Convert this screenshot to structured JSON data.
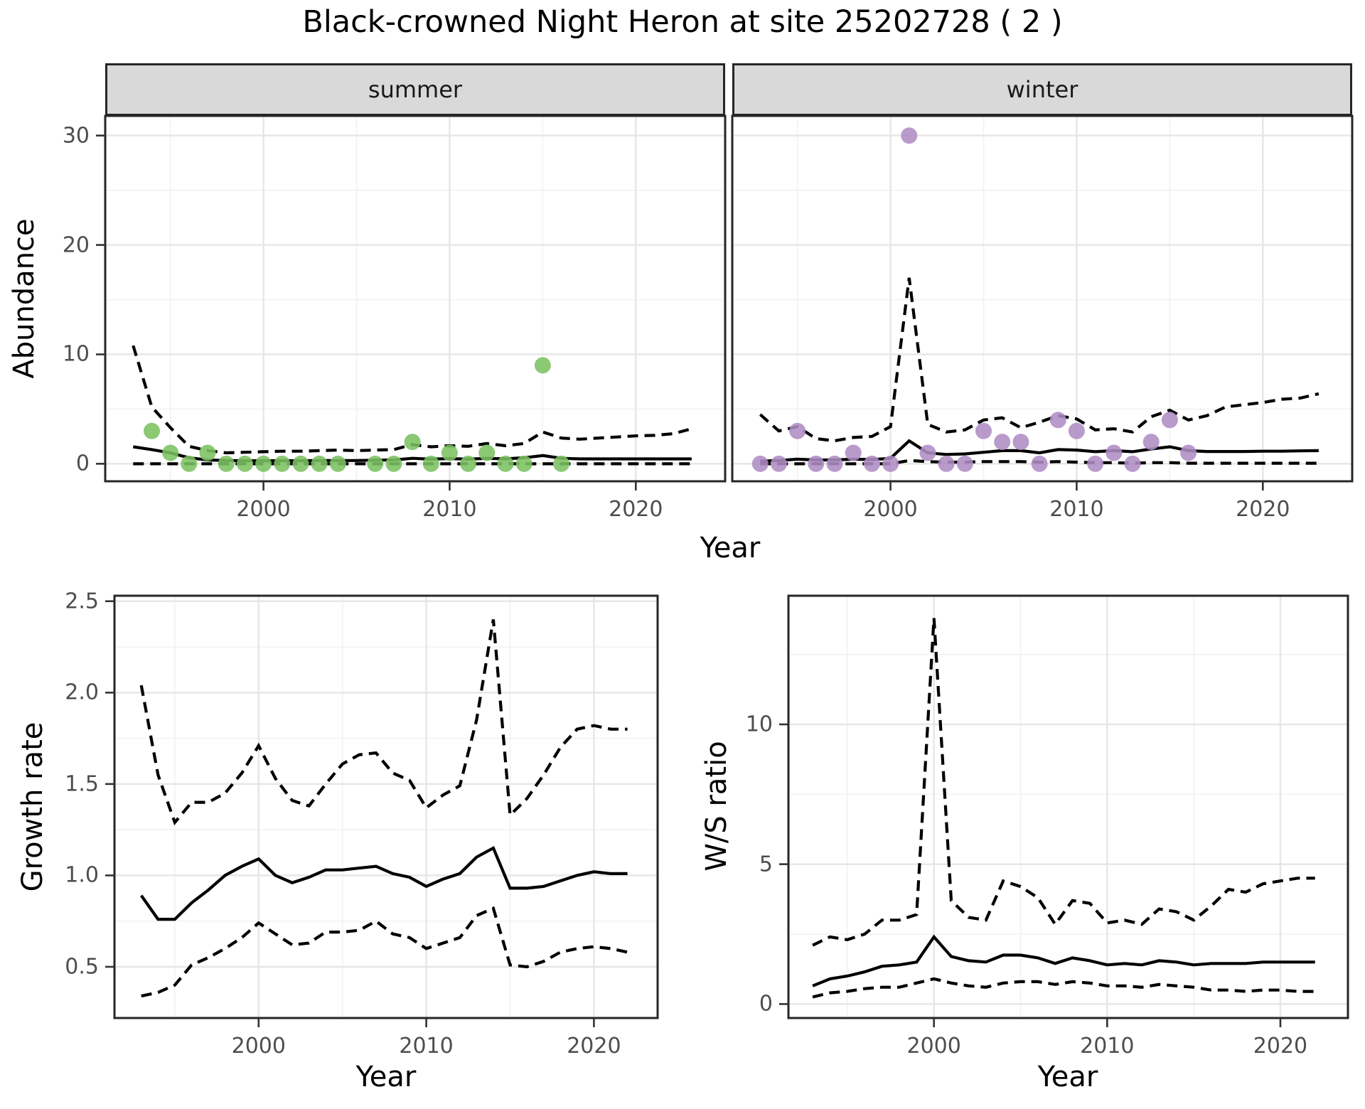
{
  "title": "Black-crowned Night Heron at site 25202728 ( 2 )",
  "labels": {
    "year": "Year",
    "abundance": "Abundance",
    "growth_rate": "Growth rate",
    "ws_ratio": "W/S ratio"
  },
  "colors": {
    "summer_point": "#7BC162",
    "winter_point": "#AE8CC4",
    "line": "#000000",
    "strip_bg": "#D9D9D9",
    "grid_major": "#E6E6E6",
    "grid_minor": "#F2F2F2",
    "panel_border": "#262626",
    "tick_mark": "#333333",
    "tick_text": "#4D4D4D"
  },
  "chart_data": [
    {
      "id": "abundance-summer",
      "type": "line",
      "facet_label": "summer",
      "xlabel": "Year",
      "ylabel": "Abundance",
      "xlim": [
        1991.5,
        2024.8
      ],
      "ylim": [
        -1.6,
        31.8
      ],
      "x_ticks": [
        2000,
        2010,
        2020
      ],
      "x_tick_labels": [
        "2000",
        "2010",
        "2020"
      ],
      "x_minor": [
        1995,
        2005,
        2015
      ],
      "y_ticks": [
        0,
        10,
        20,
        30
      ],
      "y_tick_labels": [
        "0",
        "10",
        "20",
        "30"
      ],
      "y_minor": [
        5,
        15,
        25
      ],
      "years": [
        1993,
        1994,
        1995,
        1996,
        1997,
        1998,
        1999,
        2000,
        2001,
        2002,
        2003,
        2004,
        2005,
        2006,
        2007,
        2008,
        2009,
        2010,
        2011,
        2012,
        2013,
        2014,
        2015,
        2016,
        2017,
        2018,
        2019,
        2020,
        2021,
        2022,
        2023
      ],
      "fit": [
        1.55,
        1.3,
        1.0,
        0.55,
        0.35,
        0.3,
        0.28,
        0.28,
        0.28,
        0.28,
        0.3,
        0.3,
        0.3,
        0.33,
        0.35,
        0.5,
        0.42,
        0.48,
        0.42,
        0.5,
        0.45,
        0.55,
        0.75,
        0.5,
        0.45,
        0.45,
        0.45,
        0.45,
        0.45,
        0.45,
        0.45
      ],
      "upper": [
        10.8,
        5.2,
        3.3,
        1.6,
        1.2,
        1.0,
        1.05,
        1.1,
        1.15,
        1.15,
        1.2,
        1.25,
        1.2,
        1.25,
        1.3,
        1.75,
        1.55,
        1.65,
        1.6,
        1.85,
        1.65,
        1.85,
        2.9,
        2.35,
        2.25,
        2.35,
        2.45,
        2.55,
        2.6,
        2.75,
        3.2
      ],
      "lower": [
        0,
        0,
        0,
        0,
        0,
        0,
        0,
        0,
        0,
        0,
        0,
        0,
        0,
        0,
        0,
        0,
        0,
        0,
        0,
        0,
        0,
        0,
        0,
        0,
        0,
        0,
        0,
        0,
        0,
        0,
        0
      ],
      "points": {
        "years": [
          1994,
          1995,
          1996,
          1997,
          1998,
          1999,
          2000,
          2001,
          2002,
          2003,
          2004,
          2006,
          2007,
          2008,
          2009,
          2010,
          2011,
          2012,
          2013,
          2014,
          2015,
          2016
        ],
        "values": [
          3,
          1,
          0,
          1,
          0,
          0,
          0,
          0,
          0,
          0,
          0,
          0,
          0,
          2,
          0,
          1,
          0,
          1,
          0,
          0,
          9,
          0
        ]
      },
      "point_color": "#7BC162"
    },
    {
      "id": "abundance-winter",
      "type": "line",
      "facet_label": "winter",
      "xlabel": "Year",
      "ylabel": "Abundance",
      "xlim": [
        1991.5,
        2024.8
      ],
      "ylim": [
        -1.6,
        31.8
      ],
      "x_ticks": [
        2000,
        2010,
        2020
      ],
      "x_tick_labels": [
        "2000",
        "2010",
        "2020"
      ],
      "x_minor": [
        1995,
        2005,
        2015
      ],
      "y_ticks": [
        0,
        10,
        20,
        30
      ],
      "y_tick_labels": [
        "",
        "",
        "",
        ""
      ],
      "y_minor": [
        5,
        15,
        25
      ],
      "years": [
        1993,
        1994,
        1995,
        1996,
        1997,
        1998,
        1999,
        2000,
        2001,
        2002,
        2003,
        2004,
        2005,
        2006,
        2007,
        2008,
        2009,
        2010,
        2011,
        2012,
        2013,
        2014,
        2015,
        2016,
        2017,
        2018,
        2019,
        2020,
        2021,
        2022,
        2023
      ],
      "fit": [
        0.25,
        0.3,
        0.42,
        0.35,
        0.35,
        0.42,
        0.38,
        0.5,
        2.1,
        1.0,
        0.85,
        0.9,
        1.05,
        1.2,
        1.2,
        1.0,
        1.3,
        1.25,
        1.1,
        1.2,
        1.1,
        1.35,
        1.55,
        1.2,
        1.12,
        1.12,
        1.12,
        1.15,
        1.15,
        1.18,
        1.2
      ],
      "upper": [
        4.5,
        3.0,
        3.4,
        2.3,
        2.1,
        2.4,
        2.5,
        3.4,
        17.0,
        3.6,
        2.9,
        3.1,
        4.0,
        4.2,
        3.3,
        3.8,
        4.4,
        4.1,
        3.1,
        3.2,
        2.9,
        4.3,
        4.9,
        4.0,
        4.4,
        5.2,
        5.4,
        5.6,
        5.9,
        6.0,
        6.4
      ],
      "lower": [
        0,
        0,
        0,
        0,
        0,
        0,
        0,
        0,
        0.3,
        0.2,
        0.15,
        0.15,
        0.2,
        0.2,
        0.2,
        0.15,
        0.2,
        0.15,
        0.1,
        0.1,
        0.05,
        0.1,
        0.1,
        0.05,
        0.05,
        0.05,
        0.05,
        0.05,
        0.05,
        0.05,
        0.05
      ],
      "points": {
        "years": [
          1993,
          1994,
          1995,
          1996,
          1997,
          1998,
          1999,
          2000,
          2001,
          2002,
          2003,
          2004,
          2005,
          2006,
          2007,
          2008,
          2009,
          2010,
          2011,
          2012,
          2013,
          2014,
          2015,
          2016
        ],
        "values": [
          0,
          0,
          3,
          0,
          0,
          1,
          0,
          0,
          30,
          1,
          0,
          0,
          3,
          2,
          2,
          0,
          4,
          3,
          0,
          1,
          0,
          2,
          4,
          1
        ]
      },
      "point_color": "#AE8CC4"
    },
    {
      "id": "growth-rate",
      "type": "line",
      "facet_label": "",
      "xlabel": "Year",
      "ylabel": "Growth rate",
      "xlim": [
        1991.4,
        2023.8
      ],
      "ylim": [
        0.22,
        2.53
      ],
      "x_ticks": [
        2000,
        2010,
        2020
      ],
      "x_tick_labels": [
        "2000",
        "2010",
        "2020"
      ],
      "x_minor": [
        1995,
        2005,
        2015
      ],
      "y_ticks": [
        0.5,
        1.0,
        1.5,
        2.0,
        2.5
      ],
      "y_tick_labels": [
        "0.5",
        "1.0",
        "1.5",
        "2.0",
        "2.5"
      ],
      "y_minor": [
        0.75,
        1.25,
        1.75,
        2.25
      ],
      "years": [
        1993,
        1994,
        1995,
        1996,
        1997,
        1998,
        1999,
        2000,
        2001,
        2002,
        2003,
        2004,
        2005,
        2006,
        2007,
        2008,
        2009,
        2010,
        2011,
        2012,
        2013,
        2014,
        2015,
        2016,
        2017,
        2018,
        2019,
        2020,
        2021,
        2022
      ],
      "fit": [
        0.89,
        0.76,
        0.76,
        0.85,
        0.92,
        1.0,
        1.05,
        1.09,
        1.0,
        0.96,
        0.99,
        1.03,
        1.03,
        1.04,
        1.05,
        1.01,
        0.99,
        0.94,
        0.98,
        1.01,
        1.1,
        1.15,
        0.93,
        0.93,
        0.94,
        0.97,
        1.0,
        1.02,
        1.01,
        1.01
      ],
      "upper": [
        2.04,
        1.55,
        1.29,
        1.4,
        1.4,
        1.45,
        1.56,
        1.71,
        1.53,
        1.41,
        1.38,
        1.5,
        1.61,
        1.66,
        1.67,
        1.56,
        1.52,
        1.37,
        1.44,
        1.49,
        1.85,
        2.4,
        1.33,
        1.42,
        1.55,
        1.7,
        1.8,
        1.82,
        1.8,
        1.8
      ],
      "lower": [
        0.34,
        0.36,
        0.4,
        0.51,
        0.55,
        0.6,
        0.66,
        0.74,
        0.68,
        0.62,
        0.63,
        0.69,
        0.69,
        0.7,
        0.75,
        0.68,
        0.66,
        0.6,
        0.63,
        0.66,
        0.78,
        0.82,
        0.51,
        0.5,
        0.53,
        0.58,
        0.6,
        0.61,
        0.6,
        0.58
      ],
      "points": null,
      "point_color": null
    },
    {
      "id": "ws-ratio",
      "type": "line",
      "facet_label": "",
      "xlabel": "Year",
      "ylabel": "W/S ratio",
      "xlim": [
        1991.6,
        2023.9
      ],
      "ylim": [
        -0.5,
        14.6
      ],
      "x_ticks": [
        2000,
        2010,
        2020
      ],
      "x_tick_labels": [
        "2000",
        "2010",
        "2020"
      ],
      "x_minor": [
        1995,
        2005,
        2015
      ],
      "y_ticks": [
        0,
        5,
        10
      ],
      "y_tick_labels": [
        "0",
        "5",
        "10"
      ],
      "y_minor": [
        2.5,
        7.5,
        12.5
      ],
      "years": [
        1993,
        1994,
        1995,
        1996,
        1997,
        1998,
        1999,
        2000,
        2001,
        2002,
        2003,
        2004,
        2005,
        2006,
        2007,
        2008,
        2009,
        2010,
        2011,
        2012,
        2013,
        2014,
        2015,
        2016,
        2017,
        2018,
        2019,
        2020,
        2021,
        2022
      ],
      "fit": [
        0.65,
        0.9,
        1.0,
        1.15,
        1.35,
        1.4,
        1.5,
        2.4,
        1.7,
        1.55,
        1.5,
        1.75,
        1.75,
        1.65,
        1.45,
        1.65,
        1.55,
        1.4,
        1.45,
        1.4,
        1.55,
        1.5,
        1.4,
        1.45,
        1.45,
        1.45,
        1.5,
        1.5,
        1.5,
        1.5
      ],
      "upper": [
        2.1,
        2.4,
        2.3,
        2.5,
        3.0,
        3.0,
        3.2,
        13.8,
        3.7,
        3.1,
        3.0,
        4.4,
        4.2,
        3.8,
        2.85,
        3.7,
        3.6,
        2.9,
        3.0,
        2.85,
        3.4,
        3.3,
        3.0,
        3.5,
        4.1,
        4.0,
        4.3,
        4.4,
        4.5,
        4.5
      ],
      "lower": [
        0.25,
        0.4,
        0.45,
        0.55,
        0.6,
        0.6,
        0.75,
        0.9,
        0.75,
        0.65,
        0.6,
        0.75,
        0.8,
        0.8,
        0.7,
        0.8,
        0.75,
        0.65,
        0.65,
        0.6,
        0.7,
        0.65,
        0.6,
        0.5,
        0.5,
        0.45,
        0.5,
        0.5,
        0.45,
        0.45
      ],
      "points": null,
      "point_color": null
    }
  ]
}
